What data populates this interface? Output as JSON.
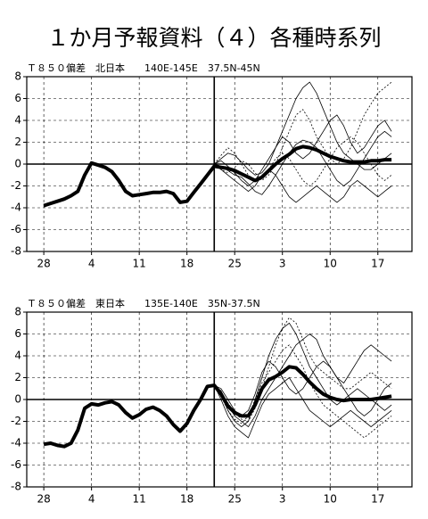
{
  "title": "１か月予報資料（４）各種時系列",
  "chart_data": [
    {
      "type": "line",
      "title": "Ｔ８５０偏差　北日本　　140E-145E　37.5N-45N",
      "x": [
        0,
        1,
        2,
        3,
        4,
        5,
        6,
        7,
        8,
        9,
        10,
        11,
        12,
        13,
        14,
        15,
        16,
        17,
        18,
        19,
        20,
        21,
        22,
        23,
        24,
        25,
        26,
        27,
        28,
        29,
        30,
        31,
        32,
        33,
        34,
        35,
        36,
        37,
        38,
        39,
        40,
        41,
        42,
        43,
        44,
        45,
        46,
        47,
        48,
        49,
        50,
        51
      ],
      "xlim": [
        -2.5,
        54
      ],
      "ylim": [
        -8,
        8
      ],
      "xticks": [
        {
          "value": 0,
          "label": "28"
        },
        {
          "value": 7,
          "label": "4"
        },
        {
          "value": 14,
          "label": "11"
        },
        {
          "value": 21,
          "label": "18"
        },
        {
          "value": 28,
          "label": "25"
        },
        {
          "value": 35,
          "label": "3"
        },
        {
          "value": 42,
          "label": "10"
        },
        {
          "value": 49,
          "label": "17"
        }
      ],
      "yticks": [
        -8,
        -6,
        -4,
        -2,
        0,
        2,
        4,
        6,
        8
      ],
      "vlines": [
        25
      ],
      "grid": true,
      "series": [
        {
          "color": "#000",
          "width": 4,
          "values": [
            -3.8,
            -3.6,
            -3.4,
            -3.2,
            -2.9,
            -2.5,
            -1.0,
            0.1,
            -0.1,
            -0.3,
            -0.7,
            -1.5,
            -2.5,
            -2.9,
            -2.8,
            -2.7,
            -2.6,
            -2.6,
            -2.5,
            -2.7,
            -3.5,
            -3.4,
            -2.6,
            -1.8,
            -1.0,
            -0.2,
            -0.3,
            -0.4,
            -0.6,
            -0.9,
            -1.2,
            -1.5,
            -1.2,
            -0.6,
            0.0,
            0.5,
            0.9,
            1.4,
            1.6,
            1.5,
            1.3,
            1.0,
            0.7,
            0.5,
            0.3,
            0.2,
            0.2,
            0.2,
            0.3,
            0.3,
            0.4,
            0.4
          ]
        },
        {
          "color": "#000",
          "width": 0.8,
          "values": [
            null,
            null,
            null,
            null,
            null,
            null,
            null,
            null,
            null,
            null,
            null,
            null,
            null,
            null,
            null,
            null,
            null,
            null,
            null,
            null,
            null,
            null,
            null,
            null,
            null,
            0,
            0.5,
            1,
            0.8,
            0.2,
            -0.5,
            -1,
            -0.8,
            0,
            1.5,
            3,
            4.5,
            6,
            7,
            7.5,
            6.5,
            5,
            3.5,
            2,
            1,
            0.5,
            0,
            -0.5,
            -0.5,
            0,
            0.5,
            1
          ]
        },
        {
          "color": "#000",
          "width": 0.8,
          "values": [
            null,
            null,
            null,
            null,
            null,
            null,
            null,
            null,
            null,
            null,
            null,
            null,
            null,
            null,
            null,
            null,
            null,
            null,
            null,
            null,
            null,
            null,
            null,
            null,
            null,
            0,
            -0.5,
            -1,
            -1.5,
            -2,
            -2.5,
            -2,
            -1,
            -0.5,
            -1,
            -2,
            -3,
            -3.5,
            -3,
            -2.5,
            -2,
            -2.5,
            -3,
            -3.5,
            -3,
            -2,
            -1.5,
            -2,
            -2.5,
            -3,
            -2.5,
            -2
          ]
        },
        {
          "color": "#000",
          "width": 0.8,
          "values": [
            null,
            null,
            null,
            null,
            null,
            null,
            null,
            null,
            null,
            null,
            null,
            null,
            null,
            null,
            null,
            null,
            null,
            null,
            null,
            null,
            null,
            null,
            null,
            null,
            null,
            0,
            0.3,
            -0.2,
            -0.8,
            -1.5,
            -2,
            -1.5,
            -0.5,
            0.5,
            1.5,
            2.5,
            2,
            1,
            0.5,
            1,
            2,
            3,
            4,
            4.5,
            3.5,
            2,
            1,
            1.5,
            2.5,
            3.5,
            4,
            3
          ]
        },
        {
          "color": "#000",
          "width": 0.8,
          "values": [
            null,
            null,
            null,
            null,
            null,
            null,
            null,
            null,
            null,
            null,
            null,
            null,
            null,
            null,
            null,
            null,
            null,
            null,
            null,
            null,
            null,
            null,
            null,
            null,
            null,
            0,
            -0.2,
            -0.6,
            -1,
            -1.2,
            -1.8,
            -2.5,
            -2.8,
            -2,
            -1,
            0,
            1,
            1.8,
            2.2,
            2,
            1.5,
            0.5,
            -0.5,
            -1.5,
            -2,
            -1.5,
            -0.5,
            0.5,
            1.5,
            2.5,
            3,
            2.5
          ]
        },
        {
          "color": "#000",
          "width": 0.8,
          "dash": true,
          "values": [
            null,
            null,
            null,
            null,
            null,
            null,
            null,
            null,
            null,
            null,
            null,
            null,
            null,
            null,
            null,
            null,
            null,
            null,
            null,
            null,
            null,
            null,
            null,
            null,
            null,
            0,
            0.8,
            1.5,
            1,
            0,
            -1,
            -1.5,
            -1.2,
            -0.5,
            0.5,
            1,
            0.5,
            -0.5,
            -1.5,
            -2,
            -1.5,
            -0.5,
            0.5,
            1.5,
            2,
            2.5,
            2,
            1,
            0,
            -1,
            -1.5,
            -1
          ]
        },
        {
          "color": "#000",
          "width": 0.8,
          "dash": true,
          "values": [
            null,
            null,
            null,
            null,
            null,
            null,
            null,
            null,
            null,
            null,
            null,
            null,
            null,
            null,
            null,
            null,
            null,
            null,
            null,
            null,
            null,
            null,
            null,
            null,
            null,
            0,
            -0.5,
            -0.8,
            -0.3,
            0.3,
            0,
            -0.8,
            -1.5,
            -1,
            0,
            1.5,
            3,
            4.5,
            5,
            4,
            2.5,
            1.5,
            0.5,
            0,
            0.5,
            1.5,
            3,
            4.5,
            5.5,
            6.5,
            7,
            7.5
          ]
        }
      ]
    },
    {
      "type": "line",
      "title": "Ｔ８５０偏差　東日本　　135E-140E　35N-37.5N",
      "x": [
        0,
        1,
        2,
        3,
        4,
        5,
        6,
        7,
        8,
        9,
        10,
        11,
        12,
        13,
        14,
        15,
        16,
        17,
        18,
        19,
        20,
        21,
        22,
        23,
        24,
        25,
        26,
        27,
        28,
        29,
        30,
        31,
        32,
        33,
        34,
        35,
        36,
        37,
        38,
        39,
        40,
        41,
        42,
        43,
        44,
        45,
        46,
        47,
        48,
        49,
        50,
        51
      ],
      "xlim": [
        -2.5,
        54
      ],
      "ylim": [
        -8,
        8
      ],
      "xticks": [
        {
          "value": 0,
          "label": "28"
        },
        {
          "value": 7,
          "label": "4"
        },
        {
          "value": 14,
          "label": "11"
        },
        {
          "value": 21,
          "label": "18"
        },
        {
          "value": 28,
          "label": "25"
        },
        {
          "value": 35,
          "label": "3"
        },
        {
          "value": 42,
          "label": "10"
        },
        {
          "value": 49,
          "label": "17"
        }
      ],
      "yticks": [
        -8,
        -6,
        -4,
        -2,
        0,
        2,
        4,
        6,
        8
      ],
      "vlines": [
        25
      ],
      "grid": true,
      "series": [
        {
          "color": "#000",
          "width": 4,
          "values": [
            -4.1,
            -4.0,
            -4.2,
            -4.3,
            -4.0,
            -2.8,
            -0.8,
            -0.4,
            -0.5,
            -0.3,
            -0.2,
            -0.5,
            -1.2,
            -1.7,
            -1.4,
            -0.9,
            -0.7,
            -1.0,
            -1.5,
            -2.3,
            -2.9,
            -2.2,
            -1.0,
            0.0,
            1.2,
            1.3,
            0.5,
            -0.6,
            -1.2,
            -1.5,
            -1.5,
            -0.5,
            1.0,
            1.8,
            2.1,
            2.5,
            3.0,
            2.9,
            2.3,
            1.6,
            1.0,
            0.5,
            0.2,
            0.0,
            -0.1,
            0.0,
            0.0,
            0.0,
            0.0,
            0.1,
            0.2,
            0.3
          ]
        },
        {
          "color": "#000",
          "width": 0.8,
          "values": [
            null,
            null,
            null,
            null,
            null,
            null,
            null,
            null,
            null,
            null,
            null,
            null,
            null,
            null,
            null,
            null,
            null,
            null,
            null,
            null,
            null,
            null,
            null,
            null,
            null,
            1.3,
            0.5,
            -1,
            -2,
            -2.5,
            -2,
            0,
            2,
            4,
            5.5,
            6.5,
            7,
            6,
            4.5,
            3,
            2,
            1,
            0,
            -0.5,
            0,
            0.5,
            1,
            0.5,
            0,
            -0.5,
            -1,
            -0.5
          ]
        },
        {
          "color": "#000",
          "width": 0.8,
          "values": [
            null,
            null,
            null,
            null,
            null,
            null,
            null,
            null,
            null,
            null,
            null,
            null,
            null,
            null,
            null,
            null,
            null,
            null,
            null,
            null,
            null,
            null,
            null,
            null,
            null,
            1.3,
            0.8,
            -0.5,
            -1.5,
            -2,
            -2.5,
            -1.5,
            0,
            1,
            2,
            3,
            4,
            5,
            5.5,
            6,
            5.5,
            4,
            3,
            2,
            1.5,
            2.5,
            3.5,
            4.5,
            5,
            4.5,
            4,
            3.5
          ]
        },
        {
          "color": "#000",
          "width": 0.8,
          "values": [
            null,
            null,
            null,
            null,
            null,
            null,
            null,
            null,
            null,
            null,
            null,
            null,
            null,
            null,
            null,
            null,
            null,
            null,
            null,
            null,
            null,
            null,
            null,
            null,
            null,
            1.3,
            0,
            -1.5,
            -2.5,
            -3,
            -3.5,
            -2,
            -0.5,
            0.5,
            1,
            1.5,
            2,
            1,
            0,
            -1,
            -1.5,
            -2,
            -2.5,
            -2,
            -1.5,
            -1,
            -1.5,
            -2,
            -2.5,
            -2,
            -1.5,
            -1
          ]
        },
        {
          "color": "#000",
          "width": 0.8,
          "values": [
            null,
            null,
            null,
            null,
            null,
            null,
            null,
            null,
            null,
            null,
            null,
            null,
            null,
            null,
            null,
            null,
            null,
            null,
            null,
            null,
            null,
            null,
            null,
            null,
            null,
            1.3,
            1,
            0,
            -1,
            -1.5,
            -1,
            0.5,
            2.5,
            3.5,
            3,
            2,
            1,
            0.5,
            1,
            2,
            3,
            3.5,
            3,
            2,
            1,
            0,
            -1,
            -1.5,
            -1,
            0,
            1,
            1.5
          ]
        },
        {
          "color": "#000",
          "width": 0.8,
          "dash": true,
          "values": [
            null,
            null,
            null,
            null,
            null,
            null,
            null,
            null,
            null,
            null,
            null,
            null,
            null,
            null,
            null,
            null,
            null,
            null,
            null,
            null,
            null,
            null,
            null,
            null,
            null,
            1.3,
            0.3,
            -1,
            -1.8,
            -2.2,
            -1.5,
            0,
            1.5,
            2.5,
            3.5,
            4.5,
            5,
            4,
            3,
            1.5,
            0.5,
            -0.5,
            -1,
            -1.5,
            -2,
            -2.5,
            -3,
            -3.5,
            -3,
            -2.5,
            -2,
            -1.5
          ]
        },
        {
          "color": "#000",
          "width": 0.8,
          "dash": true,
          "values": [
            null,
            null,
            null,
            null,
            null,
            null,
            null,
            null,
            null,
            null,
            null,
            null,
            null,
            null,
            null,
            null,
            null,
            null,
            null,
            null,
            null,
            null,
            null,
            null,
            null,
            1.3,
            0.6,
            -0.3,
            -1.2,
            -1.8,
            -2,
            -0.8,
            1,
            3,
            5,
            6.5,
            7.5,
            7,
            5.5,
            4,
            3,
            2.5,
            2,
            1.5,
            1,
            1,
            1.5,
            2,
            2.5,
            2,
            1.5,
            1
          ]
        }
      ]
    }
  ]
}
